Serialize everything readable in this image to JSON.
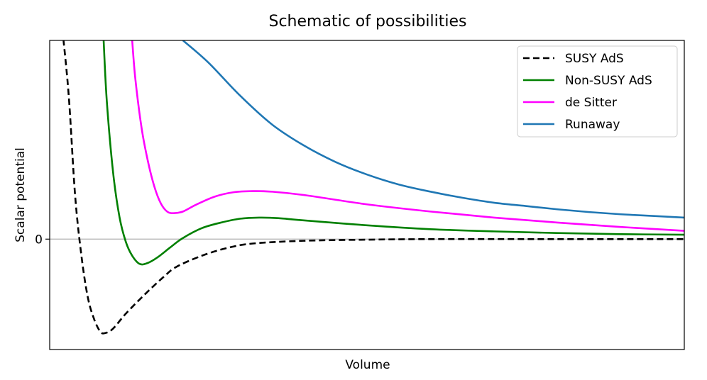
{
  "chart_data": {
    "type": "line",
    "title": "Schematic of possibilities",
    "xlabel": "Volume",
    "ylabel": "Scalar potential",
    "xlim": [
      0,
      10
    ],
    "ylim": [
      -2.0,
      3.6
    ],
    "yticks": [
      {
        "value": 0,
        "label": "0"
      }
    ],
    "xticks": [],
    "grid": false,
    "reference_line": {
      "y": 0,
      "color": "#b0b0b0"
    },
    "legend": {
      "placement": "top-right"
    },
    "series": [
      {
        "name": "SUSY AdS",
        "color": "#000000",
        "dash": "dashed",
        "points": [
          [
            0.2,
            3.8
          ],
          [
            0.3,
            2.6
          ],
          [
            0.4,
            0.8
          ],
          [
            0.5,
            -0.3
          ],
          [
            0.6,
            -1.05
          ],
          [
            0.7,
            -1.45
          ],
          [
            0.8,
            -1.68
          ],
          [
            0.88,
            -1.7
          ],
          [
            1.0,
            -1.62
          ],
          [
            1.2,
            -1.35
          ],
          [
            1.5,
            -1.0
          ],
          [
            1.8,
            -0.68
          ],
          [
            2.0,
            -0.5
          ],
          [
            2.4,
            -0.3
          ],
          [
            2.8,
            -0.16
          ],
          [
            3.2,
            -0.08
          ],
          [
            4.0,
            -0.03
          ],
          [
            5.0,
            -0.01
          ],
          [
            6.0,
            0
          ],
          [
            8.0,
            0
          ],
          [
            10.0,
            0
          ]
        ]
      },
      {
        "name": "Non-SUSY AdS",
        "color": "#008000",
        "dash": "solid",
        "points": [
          [
            0.85,
            3.6
          ],
          [
            0.9,
            2.5
          ],
          [
            1.0,
            1.2
          ],
          [
            1.1,
            0.4
          ],
          [
            1.2,
            -0.05
          ],
          [
            1.3,
            -0.3
          ],
          [
            1.42,
            -0.45
          ],
          [
            1.55,
            -0.43
          ],
          [
            1.7,
            -0.33
          ],
          [
            1.9,
            -0.15
          ],
          [
            2.1,
            0.02
          ],
          [
            2.4,
            0.2
          ],
          [
            2.7,
            0.3
          ],
          [
            3.0,
            0.37
          ],
          [
            3.3,
            0.39
          ],
          [
            3.6,
            0.38
          ],
          [
            4.0,
            0.34
          ],
          [
            5.0,
            0.25
          ],
          [
            6.0,
            0.18
          ],
          [
            7.0,
            0.14
          ],
          [
            8.0,
            0.11
          ],
          [
            9.0,
            0.09
          ],
          [
            10.0,
            0.08
          ]
        ]
      },
      {
        "name": "de Sitter",
        "color": "#ff00ff",
        "dash": "solid",
        "points": [
          [
            1.3,
            3.6
          ],
          [
            1.35,
            2.9
          ],
          [
            1.45,
            2.0
          ],
          [
            1.55,
            1.4
          ],
          [
            1.65,
            0.95
          ],
          [
            1.75,
            0.65
          ],
          [
            1.85,
            0.5
          ],
          [
            1.95,
            0.47
          ],
          [
            2.1,
            0.5
          ],
          [
            2.3,
            0.62
          ],
          [
            2.6,
            0.77
          ],
          [
            2.9,
            0.85
          ],
          [
            3.2,
            0.87
          ],
          [
            3.5,
            0.86
          ],
          [
            4.0,
            0.8
          ],
          [
            5.0,
            0.63
          ],
          [
            6.0,
            0.5
          ],
          [
            7.0,
            0.39
          ],
          [
            8.0,
            0.3
          ],
          [
            9.0,
            0.22
          ],
          [
            10.0,
            0.15
          ]
        ]
      },
      {
        "name": "Runaway",
        "color": "#1f77b4",
        "dash": "solid",
        "points": [
          [
            2.1,
            3.6
          ],
          [
            2.5,
            3.2
          ],
          [
            3.0,
            2.6
          ],
          [
            3.5,
            2.08
          ],
          [
            4.0,
            1.7
          ],
          [
            4.5,
            1.4
          ],
          [
            5.0,
            1.17
          ],
          [
            5.5,
            0.99
          ],
          [
            6.0,
            0.86
          ],
          [
            6.5,
            0.75
          ],
          [
            7.0,
            0.66
          ],
          [
            7.5,
            0.6
          ],
          [
            8.0,
            0.54
          ],
          [
            8.5,
            0.49
          ],
          [
            9.0,
            0.45
          ],
          [
            9.5,
            0.42
          ],
          [
            10.0,
            0.39
          ]
        ]
      }
    ]
  }
}
